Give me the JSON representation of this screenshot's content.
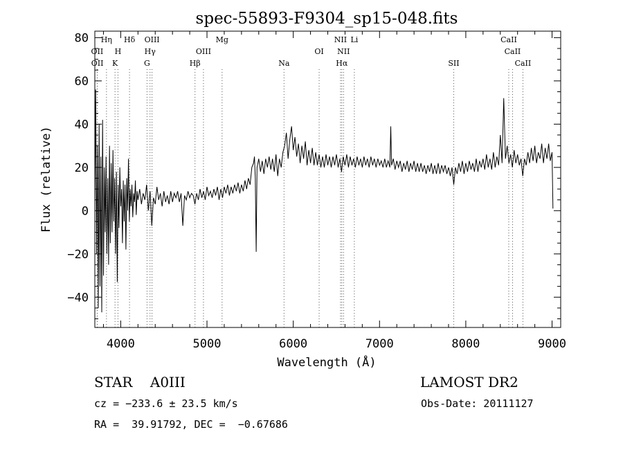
{
  "chart_data": {
    "type": "line",
    "title": "spec-55893-F9304_sp15-048.fits",
    "xlabel": "Wavelength (Å)",
    "ylabel": "Flux (relative)",
    "xlim": [
      3700,
      9100
    ],
    "ylim": [
      -54,
      83
    ],
    "xticks": [
      4000,
      5000,
      6000,
      7000,
      8000,
      9000
    ],
    "yticks": [
      -40,
      -20,
      0,
      20,
      40,
      60,
      80
    ],
    "grid": false,
    "series": [
      {
        "points": [
          [
            3700,
            2
          ],
          [
            3710,
            56
          ],
          [
            3720,
            -20
          ],
          [
            3730,
            30
          ],
          [
            3740,
            -45
          ],
          [
            3750,
            40
          ],
          [
            3760,
            -35
          ],
          [
            3770,
            25
          ],
          [
            3780,
            -47
          ],
          [
            3790,
            42
          ],
          [
            3800,
            -30
          ],
          [
            3810,
            20
          ],
          [
            3820,
            -10
          ],
          [
            3830,
            25
          ],
          [
            3840,
            -20
          ],
          [
            3850,
            15
          ],
          [
            3860,
            -25
          ],
          [
            3870,
            30
          ],
          [
            3880,
            -15
          ],
          [
            3890,
            22
          ],
          [
            3900,
            -10
          ],
          [
            3910,
            28
          ],
          [
            3920,
            -5
          ],
          [
            3930,
            15
          ],
          [
            3940,
            -20
          ],
          [
            3950,
            18
          ],
          [
            3960,
            -33
          ],
          [
            3970,
            12
          ],
          [
            3980,
            -8
          ],
          [
            3990,
            20
          ],
          [
            4000,
            2
          ],
          [
            4010,
            10
          ],
          [
            4020,
            -15
          ],
          [
            4030,
            14
          ],
          [
            4040,
            -5
          ],
          [
            4050,
            12
          ],
          [
            4060,
            -18
          ],
          [
            4070,
            15
          ],
          [
            4080,
            0
          ],
          [
            4090,
            24
          ],
          [
            4100,
            -5
          ],
          [
            4110,
            10
          ],
          [
            4120,
            2
          ],
          [
            4130,
            12
          ],
          [
            4140,
            -3
          ],
          [
            4150,
            8
          ],
          [
            4160,
            4
          ],
          [
            4170,
            14
          ],
          [
            4180,
            -2
          ],
          [
            4190,
            9
          ],
          [
            4200,
            5
          ],
          [
            4220,
            10
          ],
          [
            4240,
            3
          ],
          [
            4260,
            8
          ],
          [
            4280,
            5
          ],
          [
            4300,
            12
          ],
          [
            4320,
            0
          ],
          [
            4340,
            9
          ],
          [
            4360,
            -7
          ],
          [
            4380,
            6
          ],
          [
            4400,
            3
          ],
          [
            4420,
            11
          ],
          [
            4440,
            5
          ],
          [
            4460,
            8
          ],
          [
            4480,
            2
          ],
          [
            4500,
            9
          ],
          [
            4520,
            4
          ],
          [
            4540,
            7
          ],
          [
            4560,
            3
          ],
          [
            4580,
            9
          ],
          [
            4600,
            4
          ],
          [
            4620,
            8
          ],
          [
            4640,
            6
          ],
          [
            4660,
            9
          ],
          [
            4680,
            4
          ],
          [
            4700,
            8
          ],
          [
            4720,
            -7
          ],
          [
            4740,
            7
          ],
          [
            4760,
            5
          ],
          [
            4780,
            9
          ],
          [
            4800,
            6
          ],
          [
            4820,
            8
          ],
          [
            4840,
            7
          ],
          [
            4860,
            3
          ],
          [
            4880,
            8
          ],
          [
            4900,
            5
          ],
          [
            4920,
            10
          ],
          [
            4940,
            6
          ],
          [
            4960,
            9
          ],
          [
            4980,
            5
          ],
          [
            5000,
            11
          ],
          [
            5020,
            7
          ],
          [
            5040,
            9
          ],
          [
            5060,
            6
          ],
          [
            5080,
            10
          ],
          [
            5100,
            7
          ],
          [
            5120,
            11
          ],
          [
            5140,
            5
          ],
          [
            5160,
            10
          ],
          [
            5180,
            6
          ],
          [
            5200,
            11
          ],
          [
            5220,
            8
          ],
          [
            5240,
            12
          ],
          [
            5260,
            7
          ],
          [
            5280,
            11
          ],
          [
            5300,
            8
          ],
          [
            5320,
            12
          ],
          [
            5340,
            9
          ],
          [
            5360,
            13
          ],
          [
            5380,
            8
          ],
          [
            5400,
            12
          ],
          [
            5420,
            9
          ],
          [
            5440,
            14
          ],
          [
            5460,
            10
          ],
          [
            5480,
            15
          ],
          [
            5500,
            12
          ],
          [
            5520,
            20
          ],
          [
            5540,
            22
          ],
          [
            5550,
            25
          ],
          [
            5560,
            15
          ],
          [
            5570,
            -19
          ],
          [
            5580,
            20
          ],
          [
            5600,
            24
          ],
          [
            5620,
            18
          ],
          [
            5640,
            23
          ],
          [
            5660,
            17
          ],
          [
            5680,
            24
          ],
          [
            5700,
            20
          ],
          [
            5720,
            25
          ],
          [
            5740,
            19
          ],
          [
            5760,
            24
          ],
          [
            5780,
            18
          ],
          [
            5800,
            26
          ],
          [
            5820,
            16
          ],
          [
            5840,
            24
          ],
          [
            5860,
            20
          ],
          [
            5880,
            27
          ],
          [
            5900,
            30
          ],
          [
            5920,
            36
          ],
          [
            5940,
            24
          ],
          [
            5960,
            33
          ],
          [
            5980,
            39
          ],
          [
            6000,
            28
          ],
          [
            6020,
            34
          ],
          [
            6040,
            25
          ],
          [
            6060,
            31
          ],
          [
            6080,
            22
          ],
          [
            6100,
            30
          ],
          [
            6120,
            24
          ],
          [
            6140,
            32
          ],
          [
            6160,
            21
          ],
          [
            6180,
            28
          ],
          [
            6200,
            22
          ],
          [
            6220,
            29
          ],
          [
            6240,
            21
          ],
          [
            6260,
            27
          ],
          [
            6280,
            21
          ],
          [
            6300,
            26
          ],
          [
            6320,
            20
          ],
          [
            6340,
            25
          ],
          [
            6360,
            20
          ],
          [
            6380,
            26
          ],
          [
            6400,
            21
          ],
          [
            6420,
            25
          ],
          [
            6440,
            20
          ],
          [
            6460,
            25
          ],
          [
            6480,
            21
          ],
          [
            6500,
            26
          ],
          [
            6520,
            20
          ],
          [
            6540,
            24
          ],
          [
            6560,
            18
          ],
          [
            6580,
            25
          ],
          [
            6600,
            21
          ],
          [
            6620,
            26
          ],
          [
            6640,
            20
          ],
          [
            6660,
            25
          ],
          [
            6680,
            21
          ],
          [
            6700,
            24
          ],
          [
            6720,
            20
          ],
          [
            6740,
            25
          ],
          [
            6760,
            21
          ],
          [
            6780,
            24
          ],
          [
            6800,
            20
          ],
          [
            6820,
            25
          ],
          [
            6840,
            21
          ],
          [
            6860,
            24
          ],
          [
            6880,
            20
          ],
          [
            6900,
            25
          ],
          [
            6920,
            21
          ],
          [
            6940,
            24
          ],
          [
            6960,
            20
          ],
          [
            6980,
            24
          ],
          [
            7000,
            21
          ],
          [
            7020,
            23
          ],
          [
            7040,
            20
          ],
          [
            7060,
            24
          ],
          [
            7080,
            20
          ],
          [
            7100,
            23
          ],
          [
            7120,
            20
          ],
          [
            7130,
            39
          ],
          [
            7140,
            21
          ],
          [
            7160,
            24
          ],
          [
            7180,
            19
          ],
          [
            7200,
            23
          ],
          [
            7220,
            20
          ],
          [
            7240,
            23
          ],
          [
            7260,
            18
          ],
          [
            7280,
            22
          ],
          [
            7300,
            19
          ],
          [
            7320,
            23
          ],
          [
            7340,
            18
          ],
          [
            7360,
            22
          ],
          [
            7380,
            19
          ],
          [
            7400,
            23
          ],
          [
            7420,
            18
          ],
          [
            7440,
            22
          ],
          [
            7460,
            18
          ],
          [
            7480,
            22
          ],
          [
            7500,
            18
          ],
          [
            7520,
            21
          ],
          [
            7540,
            17
          ],
          [
            7560,
            21
          ],
          [
            7580,
            18
          ],
          [
            7600,
            22
          ],
          [
            7620,
            17
          ],
          [
            7640,
            21
          ],
          [
            7660,
            17
          ],
          [
            7680,
            22
          ],
          [
            7700,
            17
          ],
          [
            7720,
            21
          ],
          [
            7740,
            18
          ],
          [
            7760,
            21
          ],
          [
            7780,
            17
          ],
          [
            7800,
            20
          ],
          [
            7820,
            16
          ],
          [
            7840,
            20
          ],
          [
            7860,
            12
          ],
          [
            7880,
            20
          ],
          [
            7900,
            17
          ],
          [
            7920,
            22
          ],
          [
            7940,
            18
          ],
          [
            7960,
            23
          ],
          [
            7980,
            17
          ],
          [
            8000,
            22
          ],
          [
            8020,
            18
          ],
          [
            8040,
            23
          ],
          [
            8060,
            19
          ],
          [
            8080,
            22
          ],
          [
            8100,
            18
          ],
          [
            8120,
            24
          ],
          [
            8140,
            18
          ],
          [
            8160,
            23
          ],
          [
            8180,
            20
          ],
          [
            8200,
            24
          ],
          [
            8220,
            19
          ],
          [
            8240,
            26
          ],
          [
            8260,
            20
          ],
          [
            8280,
            24
          ],
          [
            8300,
            19
          ],
          [
            8320,
            27
          ],
          [
            8340,
            20
          ],
          [
            8360,
            25
          ],
          [
            8380,
            21
          ],
          [
            8400,
            35
          ],
          [
            8420,
            22
          ],
          [
            8440,
            52
          ],
          [
            8460,
            24
          ],
          [
            8480,
            30
          ],
          [
            8500,
            22
          ],
          [
            8520,
            26
          ],
          [
            8540,
            20
          ],
          [
            8560,
            28
          ],
          [
            8580,
            22
          ],
          [
            8600,
            26
          ],
          [
            8620,
            21
          ],
          [
            8640,
            24
          ],
          [
            8660,
            16
          ],
          [
            8680,
            24
          ],
          [
            8700,
            21
          ],
          [
            8720,
            27
          ],
          [
            8740,
            22
          ],
          [
            8760,
            29
          ],
          [
            8780,
            23
          ],
          [
            8800,
            30
          ],
          [
            8820,
            22
          ],
          [
            8840,
            27
          ],
          [
            8860,
            24
          ],
          [
            8880,
            31
          ],
          [
            8900,
            22
          ],
          [
            8920,
            29
          ],
          [
            8940,
            24
          ],
          [
            8960,
            31
          ],
          [
            8980,
            23
          ],
          [
            9000,
            27
          ],
          [
            9010,
            1
          ]
        ]
      }
    ],
    "lines": [
      {
        "label": "OII",
        "x": 3727,
        "row": 2
      },
      {
        "label": "OII",
        "x": 3729,
        "row": 3
      },
      {
        "label": "Hη",
        "x": 3835,
        "row": 1
      },
      {
        "label": "H",
        "x": 3968,
        "row": 2
      },
      {
        "label": "K",
        "x": 3934,
        "row": 3
      },
      {
        "label": "Hδ",
        "x": 4102,
        "row": 1
      },
      {
        "label": "OIII",
        "x": 4363,
        "row": 1
      },
      {
        "label": "Hγ",
        "x": 4340,
        "row": 2
      },
      {
        "label": "G",
        "x": 4305,
        "row": 3
      },
      {
        "label": "OIII",
        "x": 4959,
        "row": 2
      },
      {
        "label": "Hβ",
        "x": 4861,
        "row": 3
      },
      {
        "label": "Mg",
        "x": 5175,
        "row": 1
      },
      {
        "label": "Na",
        "x": 5893,
        "row": 3
      },
      {
        "label": "OI",
        "x": 6300,
        "row": 2
      },
      {
        "label": "NII",
        "x": 6548,
        "row": 1
      },
      {
        "label": "NII",
        "x": 6583,
        "row": 2
      },
      {
        "label": "Hα",
        "x": 6563,
        "row": 3
      },
      {
        "label": "Li",
        "x": 6708,
        "row": 1
      },
      {
        "label": "SII",
        "x": 7860,
        "row": 3
      },
      {
        "label": "CaII",
        "x": 8498,
        "row": 1
      },
      {
        "label": "CaII",
        "x": 8542,
        "row": 2
      },
      {
        "label": "CaII",
        "x": 8662,
        "row": 3
      }
    ]
  },
  "footer": {
    "object_type": "STAR    A0III",
    "survey": "LAMOST DR2",
    "cz": "cz = −233.6 ± 23.5 km/s",
    "obs_date": "Obs-Date: 20111127",
    "coords": "RA =  39.91792, DEC =  −0.67686"
  }
}
